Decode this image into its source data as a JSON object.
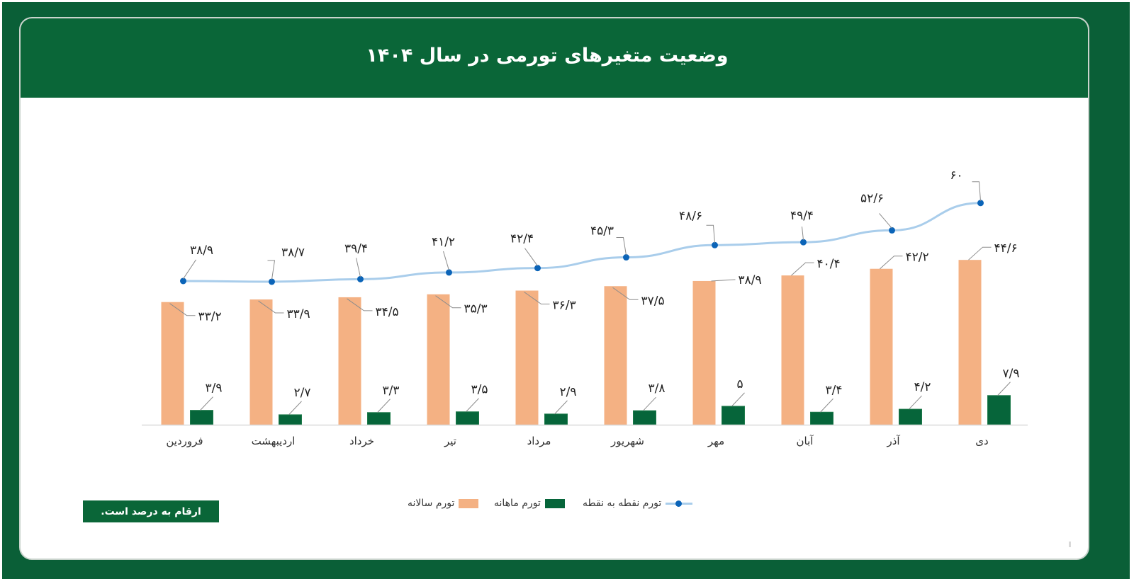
{
  "header": {
    "title": "وضعیت متغیرهای تورمی در سال ۱۴۰۴"
  },
  "note": {
    "label": "ارقام به درصد است."
  },
  "legend": {
    "point_to_point": "تورم نقطه به نقطه",
    "monthly": "تورم ماهانه",
    "annual": "تورم سالانه"
  },
  "colors": {
    "frame": "#0a5f37",
    "header": "#0a6638",
    "annual_bar": "#f4b183",
    "monthly_bar": "#06653a",
    "line": "#a9cdeb",
    "marker": "#0b64b8",
    "axis": "#d9d9d9",
    "leader": "#8c8c8c",
    "label_text": "#222222"
  },
  "chart_data": {
    "type": "bar+line",
    "title": "وضعیت متغیرهای تورمی در سال ۱۴۰۴",
    "xlabel": "",
    "ylabel": "",
    "unit": "percent",
    "ylim": [
      0,
      70
    ],
    "grid": false,
    "legend_position": "bottom",
    "categories": [
      "فروردین",
      "اردیبهشت",
      "خرداد",
      "تیر",
      "مرداد",
      "شهریور",
      "مهر",
      "آبان",
      "آذر",
      "دی"
    ],
    "series": [
      {
        "name": "تورم سالانه",
        "type": "bar",
        "values": [
          33.2,
          33.9,
          34.5,
          35.3,
          36.3,
          37.5,
          38.9,
          40.4,
          42.2,
          44.6
        ],
        "labels": [
          "۳۳/۲",
          "۳۳/۹",
          "۳۴/۵",
          "۳۵/۳",
          "۳۶/۳",
          "۳۷/۵",
          "۳۸/۹",
          "۴۰/۴",
          "۴۲/۲",
          "۴۴/۶"
        ]
      },
      {
        "name": "تورم ماهانه",
        "type": "bar",
        "values": [
          3.9,
          2.7,
          3.3,
          3.5,
          2.9,
          3.8,
          5,
          3.4,
          4.2,
          7.9
        ],
        "labels": [
          "۳/۹",
          "۲/۷",
          "۳/۳",
          "۳/۵",
          "۲/۹",
          "۳/۸",
          "۵",
          "۳/۴",
          "۴/۲",
          "۷/۹"
        ]
      },
      {
        "name": "تورم نقطه به نقطه",
        "type": "line",
        "values": [
          38.9,
          38.7,
          39.4,
          41.2,
          42.4,
          45.3,
          48.6,
          49.4,
          52.6,
          60
        ],
        "labels": [
          "۳۸/۹",
          "۳۸/۷",
          "۳۹/۴",
          "۴۱/۲",
          "۴۲/۴",
          "۴۵/۳",
          "۴۸/۶",
          "۴۹/۴",
          "۵۲/۶",
          "۶۰"
        ]
      }
    ]
  }
}
